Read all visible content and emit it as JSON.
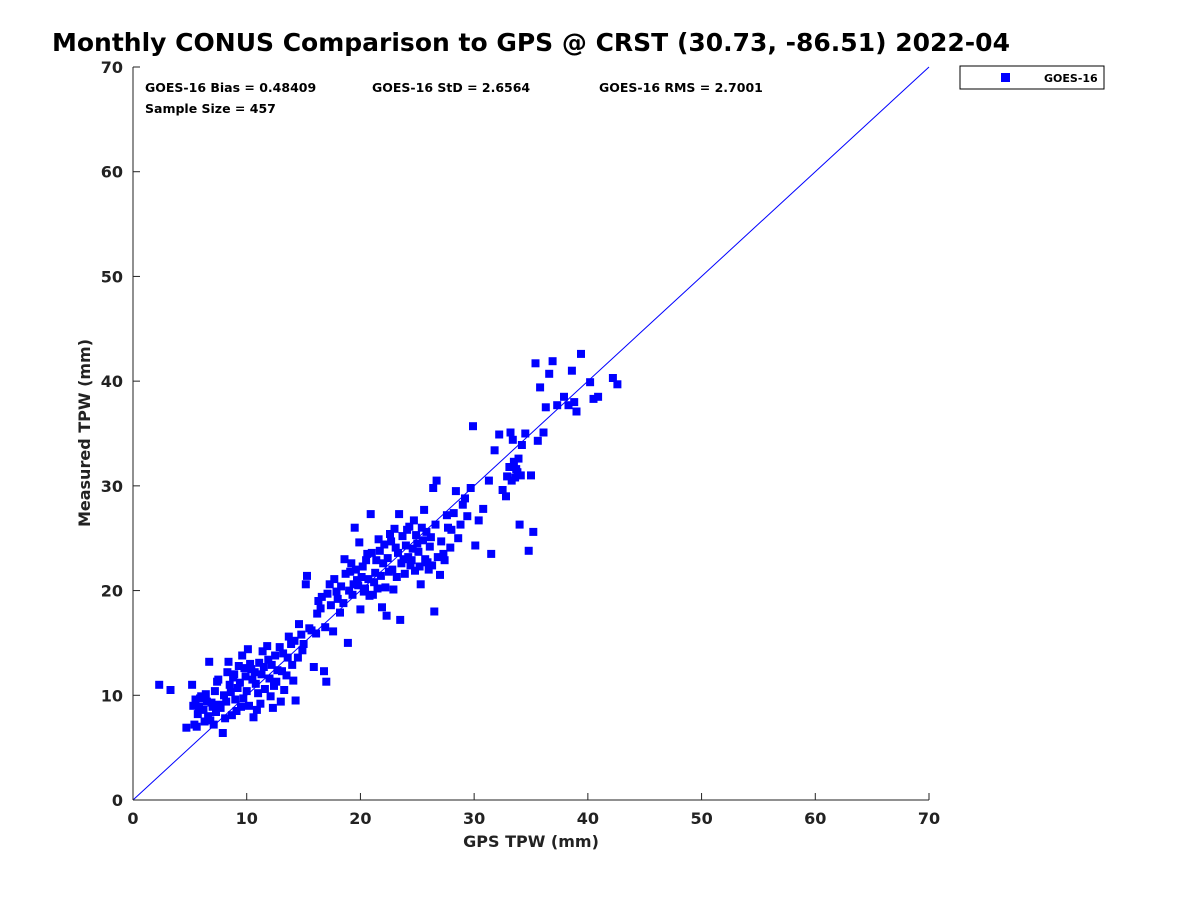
{
  "chart_data": {
    "type": "scatter",
    "title": "Monthly CONUS Comparison to GPS @ CRST (30.73, -86.51) 2022-04",
    "xlabel": "GPS TPW (mm)",
    "ylabel": "Measured TPW (mm)",
    "xlim": [
      0,
      70
    ],
    "ylim": [
      0,
      70
    ],
    "xticks": [
      "0",
      "10",
      "20",
      "30",
      "40",
      "50",
      "60",
      "70"
    ],
    "yticks": [
      "0",
      "10",
      "20",
      "30",
      "40",
      "50",
      "60",
      "70"
    ],
    "grid": false,
    "legend_position": "outside top-right",
    "reference_line": {
      "from": [
        0,
        0
      ],
      "to": [
        70,
        70
      ],
      "color": "#0000ff"
    },
    "annotations": {
      "bias": "GOES-16 Bias = 0.48409",
      "std": "GOES-16 StD = 2.6564",
      "rms": "GOES-16 RMS = 2.7001",
      "sample_size": "Sample Size = 457"
    },
    "series": [
      {
        "name": "GOES-16",
        "color": "#0000ff",
        "marker": "square",
        "points": [
          [
            2.3,
            11.0
          ],
          [
            3.3,
            10.5
          ],
          [
            4.7,
            6.9
          ],
          [
            5.2,
            11.0
          ],
          [
            5.4,
            7.2
          ],
          [
            5.6,
            7.0
          ],
          [
            5.8,
            8.9
          ],
          [
            5.9,
            9.7
          ],
          [
            6.2,
            8.6
          ],
          [
            6.5,
            9.4
          ],
          [
            6.7,
            13.2
          ],
          [
            6.8,
            7.6
          ],
          [
            7.0,
            8.9
          ],
          [
            7.2,
            10.4
          ],
          [
            7.4,
            11.3
          ],
          [
            7.6,
            9.1
          ],
          [
            7.9,
            6.4
          ],
          [
            8.1,
            7.8
          ],
          [
            8.3,
            12.2
          ],
          [
            8.4,
            13.2
          ],
          [
            8.6,
            10.3
          ],
          [
            8.8,
            11.7
          ],
          [
            9.0,
            9.6
          ],
          [
            9.2,
            10.7
          ],
          [
            9.3,
            12.8
          ],
          [
            9.5,
            8.9
          ],
          [
            9.6,
            13.8
          ],
          [
            9.9,
            11.8
          ],
          [
            10.1,
            14.4
          ],
          [
            10.4,
            12.5
          ],
          [
            10.6,
            7.9
          ],
          [
            10.8,
            11.1
          ],
          [
            11.1,
            13.1
          ],
          [
            11.2,
            9.2
          ],
          [
            11.5,
            12.7
          ],
          [
            11.8,
            14.7
          ],
          [
            12.0,
            11.6
          ],
          [
            12.3,
            8.8
          ],
          [
            12.4,
            10.9
          ],
          [
            12.7,
            12.4
          ],
          [
            13.0,
            9.4
          ],
          [
            13.2,
            14.0
          ],
          [
            13.5,
            11.9
          ],
          [
            13.7,
            15.6
          ],
          [
            14.0,
            12.9
          ],
          [
            14.3,
            9.5
          ],
          [
            14.6,
            16.8
          ],
          [
            14.9,
            14.3
          ],
          [
            15.2,
            20.6
          ],
          [
            15.3,
            21.4
          ],
          [
            15.5,
            16.4
          ],
          [
            15.9,
            12.7
          ],
          [
            16.2,
            17.8
          ],
          [
            16.5,
            18.3
          ],
          [
            16.8,
            12.3
          ],
          [
            17.0,
            11.3
          ],
          [
            17.3,
            20.6
          ],
          [
            17.6,
            16.1
          ],
          [
            17.9,
            19.9
          ],
          [
            18.2,
            17.9
          ],
          [
            18.6,
            23.0
          ],
          [
            18.9,
            15.0
          ],
          [
            19.1,
            21.8
          ],
          [
            19.4,
            20.6
          ],
          [
            19.5,
            26.0
          ],
          [
            19.7,
            21.0
          ],
          [
            19.9,
            24.6
          ],
          [
            20.0,
            18.2
          ],
          [
            20.2,
            22.3
          ],
          [
            20.4,
            20.2
          ],
          [
            20.6,
            23.5
          ],
          [
            20.9,
            27.3
          ],
          [
            21.1,
            19.6
          ],
          [
            21.3,
            21.7
          ],
          [
            21.6,
            24.9
          ],
          [
            21.9,
            18.4
          ],
          [
            22.0,
            22.6
          ],
          [
            22.3,
            17.6
          ],
          [
            22.6,
            25.4
          ],
          [
            22.9,
            20.1
          ],
          [
            23.1,
            24.1
          ],
          [
            23.4,
            27.3
          ],
          [
            23.5,
            17.2
          ],
          [
            23.8,
            23.0
          ],
          [
            24.1,
            25.8
          ],
          [
            24.4,
            22.4
          ],
          [
            24.7,
            26.7
          ],
          [
            25.0,
            24.5
          ],
          [
            25.3,
            20.6
          ],
          [
            25.6,
            27.7
          ],
          [
            25.9,
            22.7
          ],
          [
            26.2,
            25.1
          ],
          [
            26.4,
            29.8
          ],
          [
            26.5,
            18.0
          ],
          [
            26.7,
            30.5
          ],
          [
            27.0,
            21.5
          ],
          [
            27.3,
            23.5
          ],
          [
            27.6,
            27.2
          ],
          [
            28.0,
            25.8
          ],
          [
            28.4,
            29.5
          ],
          [
            28.8,
            26.3
          ],
          [
            29.2,
            28.8
          ],
          [
            29.7,
            29.8
          ],
          [
            29.9,
            35.7
          ],
          [
            30.1,
            24.3
          ],
          [
            30.4,
            26.7
          ],
          [
            30.8,
            27.8
          ],
          [
            31.3,
            30.5
          ],
          [
            31.5,
            23.5
          ],
          [
            31.8,
            33.4
          ],
          [
            32.2,
            34.9
          ],
          [
            32.5,
            29.6
          ],
          [
            32.8,
            29.0
          ],
          [
            33.2,
            35.1
          ],
          [
            33.4,
            34.4
          ],
          [
            33.7,
            31.6
          ],
          [
            34.0,
            26.3
          ],
          [
            34.2,
            33.9
          ],
          [
            34.5,
            35.0
          ],
          [
            34.8,
            23.8
          ],
          [
            35.0,
            31.0
          ],
          [
            35.2,
            25.6
          ],
          [
            35.4,
            41.7
          ],
          [
            35.6,
            34.3
          ],
          [
            35.8,
            39.4
          ],
          [
            36.1,
            35.1
          ],
          [
            36.3,
            37.5
          ],
          [
            36.6,
            40.7
          ],
          [
            36.9,
            41.9
          ],
          [
            37.3,
            37.7
          ],
          [
            37.9,
            38.5
          ],
          [
            38.3,
            37.7
          ],
          [
            38.6,
            41.0
          ],
          [
            38.8,
            38.0
          ],
          [
            39.0,
            37.1
          ],
          [
            39.4,
            42.6
          ],
          [
            40.2,
            39.9
          ],
          [
            40.5,
            38.3
          ],
          [
            40.9,
            38.5
          ],
          [
            42.2,
            40.3
          ],
          [
            42.6,
            39.7
          ],
          [
            5.3,
            9.0
          ],
          [
            5.5,
            9.6
          ],
          [
            5.7,
            8.2
          ],
          [
            6.0,
            9.9
          ],
          [
            6.3,
            7.5
          ],
          [
            6.4,
            10.1
          ],
          [
            6.6,
            8.0
          ],
          [
            6.9,
            9.3
          ],
          [
            7.1,
            7.2
          ],
          [
            7.3,
            8.4
          ],
          [
            7.5,
            11.5
          ],
          [
            7.7,
            8.8
          ],
          [
            8.0,
            10.0
          ],
          [
            8.2,
            9.4
          ],
          [
            8.5,
            11.0
          ],
          [
            8.7,
            8.1
          ],
          [
            8.9,
            12.0
          ],
          [
            9.1,
            8.5
          ],
          [
            9.4,
            11.2
          ],
          [
            9.7,
            9.7
          ],
          [
            9.8,
            12.6
          ],
          [
            10.0,
            10.4
          ],
          [
            10.2,
            9.0
          ],
          [
            10.3,
            13.0
          ],
          [
            10.5,
            11.5
          ],
          [
            10.7,
            12.2
          ],
          [
            10.9,
            8.6
          ],
          [
            11.0,
            10.2
          ],
          [
            11.3,
            12.0
          ],
          [
            11.4,
            14.2
          ],
          [
            11.6,
            10.6
          ],
          [
            11.9,
            13.4
          ],
          [
            12.1,
            9.9
          ],
          [
            12.2,
            12.9
          ],
          [
            12.5,
            13.8
          ],
          [
            12.6,
            11.3
          ],
          [
            12.9,
            14.6
          ],
          [
            13.1,
            12.3
          ],
          [
            13.3,
            10.5
          ],
          [
            13.6,
            13.6
          ],
          [
            13.9,
            14.9
          ],
          [
            14.1,
            11.4
          ],
          [
            14.2,
            15.2
          ],
          [
            14.5,
            13.6
          ],
          [
            14.8,
            15.8
          ],
          [
            15.0,
            14.9
          ],
          [
            15.7,
            16.2
          ],
          [
            16.1,
            15.9
          ],
          [
            16.3,
            19.0
          ],
          [
            16.6,
            19.4
          ],
          [
            16.9,
            16.5
          ],
          [
            17.1,
            19.7
          ],
          [
            17.4,
            18.6
          ],
          [
            17.7,
            21.1
          ],
          [
            18.0,
            19.2
          ],
          [
            18.3,
            20.4
          ],
          [
            18.5,
            18.8
          ],
          [
            18.7,
            21.6
          ],
          [
            19.0,
            20.0
          ],
          [
            19.2,
            22.6
          ],
          [
            19.3,
            19.6
          ],
          [
            19.6,
            22.0
          ],
          [
            19.8,
            20.5
          ],
          [
            20.1,
            21.3
          ],
          [
            20.3,
            19.9
          ],
          [
            20.5,
            22.9
          ],
          [
            20.7,
            21.1
          ],
          [
            20.8,
            19.5
          ],
          [
            21.0,
            23.6
          ],
          [
            21.2,
            20.8
          ],
          [
            21.4,
            22.9
          ],
          [
            21.5,
            20.2
          ],
          [
            21.7,
            23.8
          ],
          [
            21.8,
            21.4
          ],
          [
            22.1,
            24.4
          ],
          [
            22.2,
            20.3
          ],
          [
            22.4,
            23.1
          ],
          [
            22.5,
            21.8
          ],
          [
            22.7,
            24.7
          ],
          [
            22.8,
            22.0
          ],
          [
            23.0,
            25.9
          ],
          [
            23.2,
            21.3
          ],
          [
            23.3,
            23.6
          ],
          [
            23.6,
            22.6
          ],
          [
            23.7,
            25.2
          ],
          [
            23.9,
            21.6
          ],
          [
            24.0,
            24.3
          ],
          [
            24.2,
            23.2
          ],
          [
            24.3,
            26.1
          ],
          [
            24.5,
            22.9
          ],
          [
            24.6,
            24.0
          ],
          [
            24.8,
            21.9
          ],
          [
            24.9,
            25.3
          ],
          [
            25.1,
            23.7
          ],
          [
            25.2,
            22.3
          ],
          [
            25.4,
            26.0
          ],
          [
            25.5,
            24.8
          ],
          [
            25.7,
            23.0
          ],
          [
            25.8,
            25.6
          ],
          [
            26.0,
            22.0
          ],
          [
            26.1,
            24.2
          ],
          [
            26.3,
            22.4
          ],
          [
            26.6,
            26.3
          ],
          [
            26.8,
            23.2
          ],
          [
            27.1,
            24.7
          ],
          [
            27.4,
            22.9
          ],
          [
            27.7,
            26.0
          ],
          [
            27.9,
            24.1
          ],
          [
            28.2,
            27.4
          ],
          [
            28.6,
            25.0
          ],
          [
            29.0,
            28.2
          ],
          [
            29.4,
            27.1
          ],
          [
            32.9,
            30.9
          ],
          [
            33.1,
            31.8
          ],
          [
            33.3,
            30.5
          ],
          [
            33.5,
            32.3
          ],
          [
            33.6,
            30.8
          ],
          [
            33.8,
            31.3
          ],
          [
            33.9,
            32.6
          ],
          [
            34.1,
            31.0
          ]
        ]
      }
    ]
  }
}
